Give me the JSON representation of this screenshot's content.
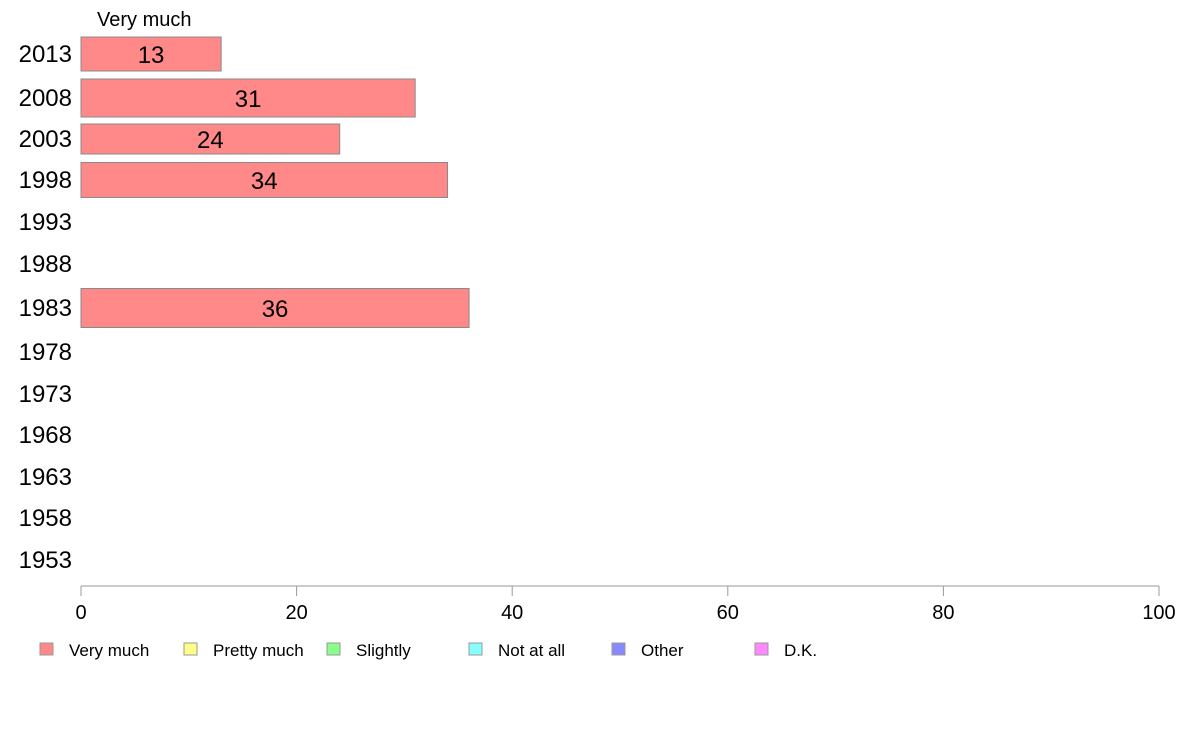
{
  "chart_data": {
    "type": "bar",
    "orientation": "horizontal",
    "stacked": true,
    "title": "",
    "column_header": "Very much",
    "categories": [
      "2013",
      "2008",
      "2003",
      "1998",
      "1993",
      "1988",
      "1983",
      "1978",
      "1973",
      "1968",
      "1963",
      "1958",
      "1953"
    ],
    "series": [
      {
        "name": "Very much",
        "color": "#ff8888",
        "values": [
          13,
          31,
          24,
          34,
          null,
          null,
          36,
          null,
          null,
          null,
          null,
          null,
          null
        ],
        "labels": [
          "13",
          "31",
          "24",
          "34",
          "",
          "",
          "36",
          "",
          "",
          "",
          "",
          "",
          ""
        ]
      }
    ],
    "xlim": [
      0,
      100
    ],
    "xticks": [
      0,
      20,
      40,
      60,
      80,
      100
    ],
    "xtick_labels": [
      "0",
      "20",
      "40",
      "60",
      "80",
      "100"
    ],
    "grid": false,
    "legend_position": "bottom",
    "legend": [
      {
        "label": "Very much",
        "color": "#ff8888"
      },
      {
        "label": "Pretty much",
        "color": "#ffff88"
      },
      {
        "label": "Slightly",
        "color": "#88ff88"
      },
      {
        "label": "Not at all",
        "color": "#88ffff"
      },
      {
        "label": "Other",
        "color": "#8888ff"
      },
      {
        "label": "D.K.",
        "color": "#ff88ff"
      }
    ]
  }
}
